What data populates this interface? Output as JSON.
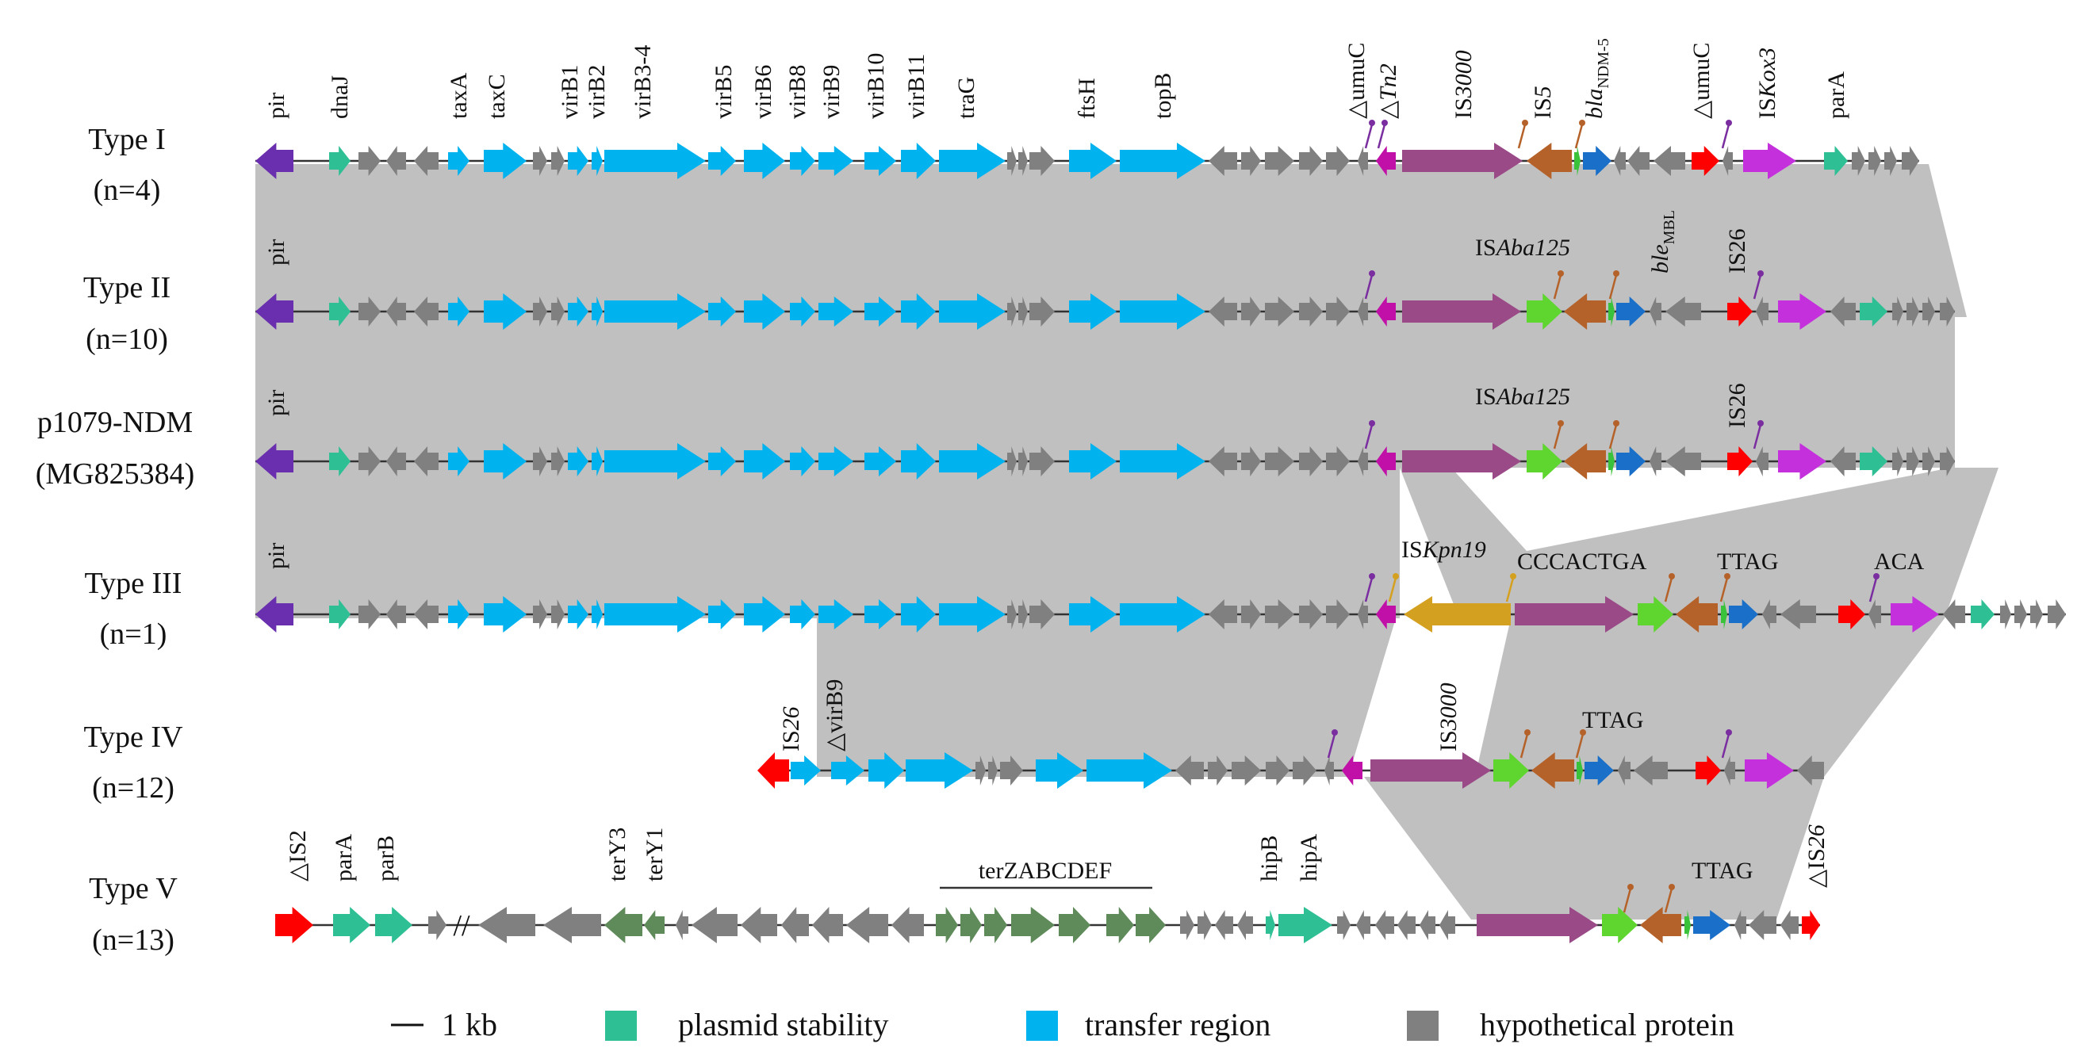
{
  "colors": {
    "stability": "#2fbf94",
    "transfer": "#00b2ee",
    "hypothetical": "#808080",
    "pir": "#6a2fae",
    "tn": "#c010a8",
    "is3000": "#9b4a88",
    "is5": "#b5622a",
    "bla": "#1a6fc9",
    "ble": "#39c23a",
    "red": "#ff0000",
    "iskox": "#c430dc",
    "isaba": "#5fd530",
    "iskpn": "#d4a020",
    "ter": "#5f8a5a",
    "shade": "#c0c0c0"
  },
  "rows": [
    {
      "label": [
        "Type I",
        "(n=4)"
      ]
    },
    {
      "label": [
        "Type II",
        "(n=10)"
      ]
    },
    {
      "label": [
        "p1079-NDM",
        "(MG825384)"
      ]
    },
    {
      "label": [
        "Type III",
        "(n=1)"
      ]
    },
    {
      "label": [
        "Type IV",
        "(n=12)"
      ]
    },
    {
      "label": [
        "Type V",
        "(n=13)"
      ]
    }
  ],
  "labels": {
    "pir": "pir",
    "dnaJ": "dnaJ",
    "taxA": "taxA",
    "taxC": "taxC",
    "virB1": "virB1",
    "virB2": "virB2",
    "virB3_4": "virB3-4",
    "virB5": "virB5",
    "virB6": "virB6",
    "virB8": "virB8",
    "virB9": "virB9",
    "virB10": "virB10",
    "virB11": "virB11",
    "traG": "traG",
    "ftsH": "ftsH",
    "topB": "topB",
    "umuC": "umuC",
    "Tn2": "Tn2",
    "IS3000": "IS3000",
    "IS5": "IS5",
    "blaNDM": "bla",
    "blaNDM_sub": "NDM-5",
    "parA": "parA",
    "ISKox3": "ISKox3",
    "ISAba125": "ISAba125",
    "bleMBL": "ble",
    "bleMBL_sub": "MBL",
    "IS26": "IS26",
    "ISKpn19": "ISKpn19",
    "CCCACTGA": "CCCACTGA",
    "TTAG": "TTAG",
    "ACA": "ACA",
    "IS2": "IS2",
    "parB": "parB",
    "terY3": "terY3",
    "terY1": "terY1",
    "terZABCDEF": "terZABCDEF",
    "hipB": "hipB",
    "hipA": "hipA",
    "delta": "△",
    "break": "//"
  },
  "legend": {
    "scale": "1 kb",
    "stability": "plasmid stability",
    "transfer": "transfer region",
    "hypothetical": "hypothetical protein"
  }
}
